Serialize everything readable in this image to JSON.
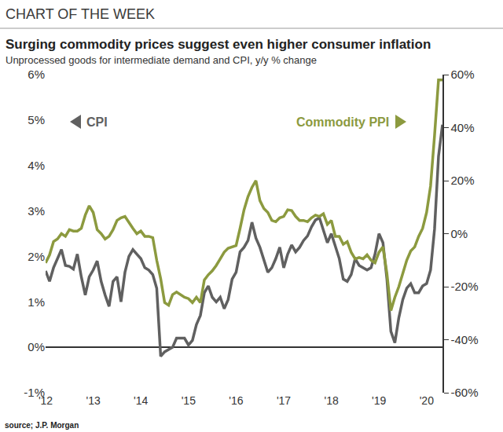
{
  "chart_data": {
    "type": "line",
    "header": "CHART OF THE WEEK",
    "title": "Surging commodity prices suggest even higher consumer inflation",
    "subtitle": "Unprocessed goods for intermediate demand and CPI, y/y % change",
    "source": "source; J.P. Morgan",
    "grid": false,
    "categories": [
      "'12",
      null,
      null,
      null,
      null,
      null,
      null,
      null,
      null,
      null,
      null,
      null,
      "'13",
      null,
      null,
      null,
      null,
      null,
      null,
      null,
      null,
      null,
      null,
      null,
      "'14",
      null,
      null,
      null,
      null,
      null,
      null,
      null,
      null,
      null,
      null,
      null,
      "'15",
      null,
      null,
      null,
      null,
      null,
      null,
      null,
      null,
      null,
      null,
      null,
      "'16",
      null,
      null,
      null,
      null,
      null,
      null,
      null,
      null,
      null,
      null,
      null,
      "'17",
      null,
      null,
      null,
      null,
      null,
      null,
      null,
      null,
      null,
      null,
      null,
      "'18",
      null,
      null,
      null,
      null,
      null,
      null,
      null,
      null,
      null,
      null,
      null,
      "'19",
      null,
      null,
      null,
      null,
      null,
      null,
      null,
      null,
      null,
      null,
      null,
      "'20",
      null,
      null,
      null,
      null
    ],
    "ylim": [
      -1,
      6
    ],
    "yticks": [
      {
        "value": -1,
        "label": "-1%"
      },
      {
        "value": 0,
        "label": "0%"
      },
      {
        "value": 1,
        "label": "1%"
      },
      {
        "value": 2,
        "label": "2%"
      },
      {
        "value": 3,
        "label": "3%"
      },
      {
        "value": 4,
        "label": "4%"
      },
      {
        "value": 5,
        "label": "5%"
      },
      {
        "value": 6,
        "label": "6%"
      }
    ],
    "y2lim": [
      -60,
      60
    ],
    "y2ticks": [
      {
        "value": -60,
        "label": "-60%"
      },
      {
        "value": -40,
        "label": "-40%"
      },
      {
        "value": -20,
        "label": "-20%"
      },
      {
        "value": 0,
        "label": "0%"
      },
      {
        "value": 20,
        "label": "20%"
      },
      {
        "value": 40,
        "label": "40%"
      },
      {
        "value": 60,
        "label": "60%"
      }
    ],
    "series": [
      {
        "name": "CPI",
        "color": "#606060",
        "axis": "y",
        "line_style": "solid",
        "values": [
          1.68,
          1.45,
          1.75,
          1.95,
          2.15,
          1.8,
          1.78,
          1.72,
          2.05,
          1.55,
          1.15,
          1.55,
          1.7,
          1.9,
          1.45,
          1.15,
          0.9,
          1.45,
          1.55,
          1.0,
          1.65,
          2.0,
          2.15,
          2.05,
          1.95,
          1.75,
          1.7,
          1.6,
          1.3,
          -0.2,
          -0.1,
          -0.05,
          0.0,
          0.2,
          0.2,
          0.2,
          0.05,
          0.15,
          0.5,
          0.7,
          1.2,
          1.35,
          1.1,
          1.0,
          1.1,
          0.85,
          1.05,
          1.5,
          1.65,
          2.1,
          2.2,
          2.35,
          2.75,
          2.4,
          2.2,
          1.9,
          1.65,
          1.75,
          1.95,
          2.2,
          1.75,
          2.05,
          2.25,
          2.1,
          2.2,
          2.35,
          2.45,
          2.65,
          2.8,
          2.85,
          2.55,
          2.3,
          2.5,
          2.2,
          1.95,
          1.5,
          1.45,
          1.6,
          1.95,
          1.8,
          1.75,
          1.7,
          1.75,
          2.05,
          2.5,
          2.3,
          1.5,
          0.35,
          0.1,
          0.65,
          1.05,
          1.3,
          1.4,
          1.2,
          1.2,
          1.35,
          1.4,
          1.7,
          2.6,
          4.2,
          4.9
        ]
      },
      {
        "name": "Commodity PPI",
        "color": "#8c9a3f",
        "axis": "y2",
        "line_style": "solid",
        "values": [
          -11,
          -8,
          -3,
          -2,
          0,
          -1,
          1.5,
          1,
          1,
          2,
          7,
          10.5,
          8,
          1.5,
          0,
          -2,
          -1,
          1.5,
          5,
          6,
          6.5,
          4,
          2,
          0,
          1,
          -1,
          -1,
          -1.5,
          -10,
          -17,
          -26,
          -27,
          -23,
          -22,
          -23,
          -24,
          -24.5,
          -26,
          -24,
          -26,
          -17.5,
          -15.5,
          -14,
          -12,
          -9.5,
          -7,
          -5.5,
          -5,
          -4.5,
          2,
          9,
          14,
          17.5,
          20,
          12.5,
          9.5,
          8,
          5,
          4.5,
          6,
          6.5,
          9,
          8.7,
          6.5,
          5,
          5,
          4.5,
          6,
          7,
          6.5,
          7.5,
          3.5,
          5,
          -1,
          -1,
          -4,
          -3,
          -7,
          -9.5,
          -9,
          -9.5,
          -8,
          -10,
          -11,
          -7,
          -5,
          -15,
          -29,
          -24,
          -20,
          -15,
          -10,
          -6.5,
          -5,
          -1,
          2,
          8,
          18,
          37,
          58,
          58
        ]
      }
    ]
  }
}
